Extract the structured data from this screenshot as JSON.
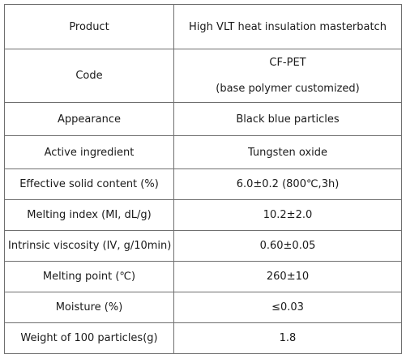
{
  "table": {
    "rows": [
      {
        "label": "Product",
        "value": "High VLT heat insulation masterbatch"
      },
      {
        "label": "Code",
        "value_lines": [
          "CF-PET",
          "(base polymer customized)"
        ]
      },
      {
        "label": "Appearance",
        "value": "Black blue particles"
      },
      {
        "label": "Active ingredient",
        "value": "Tungsten oxide"
      },
      {
        "label": "Effective solid content (%)",
        "value": "6.0±0.2 (800℃,3h)"
      },
      {
        "label": "Melting index (MI, dL/g)",
        "value": "10.2±2.0"
      },
      {
        "label": "Intrinsic viscosity (IV, g/10min)",
        "value": "0.60±0.05"
      },
      {
        "label": "Melting point (℃)",
        "value": "260±10"
      },
      {
        "label": "Moisture (%)",
        "value": "≤0.03"
      },
      {
        "label": "Weight of 100 particles(g)",
        "value": "1.8"
      }
    ]
  }
}
